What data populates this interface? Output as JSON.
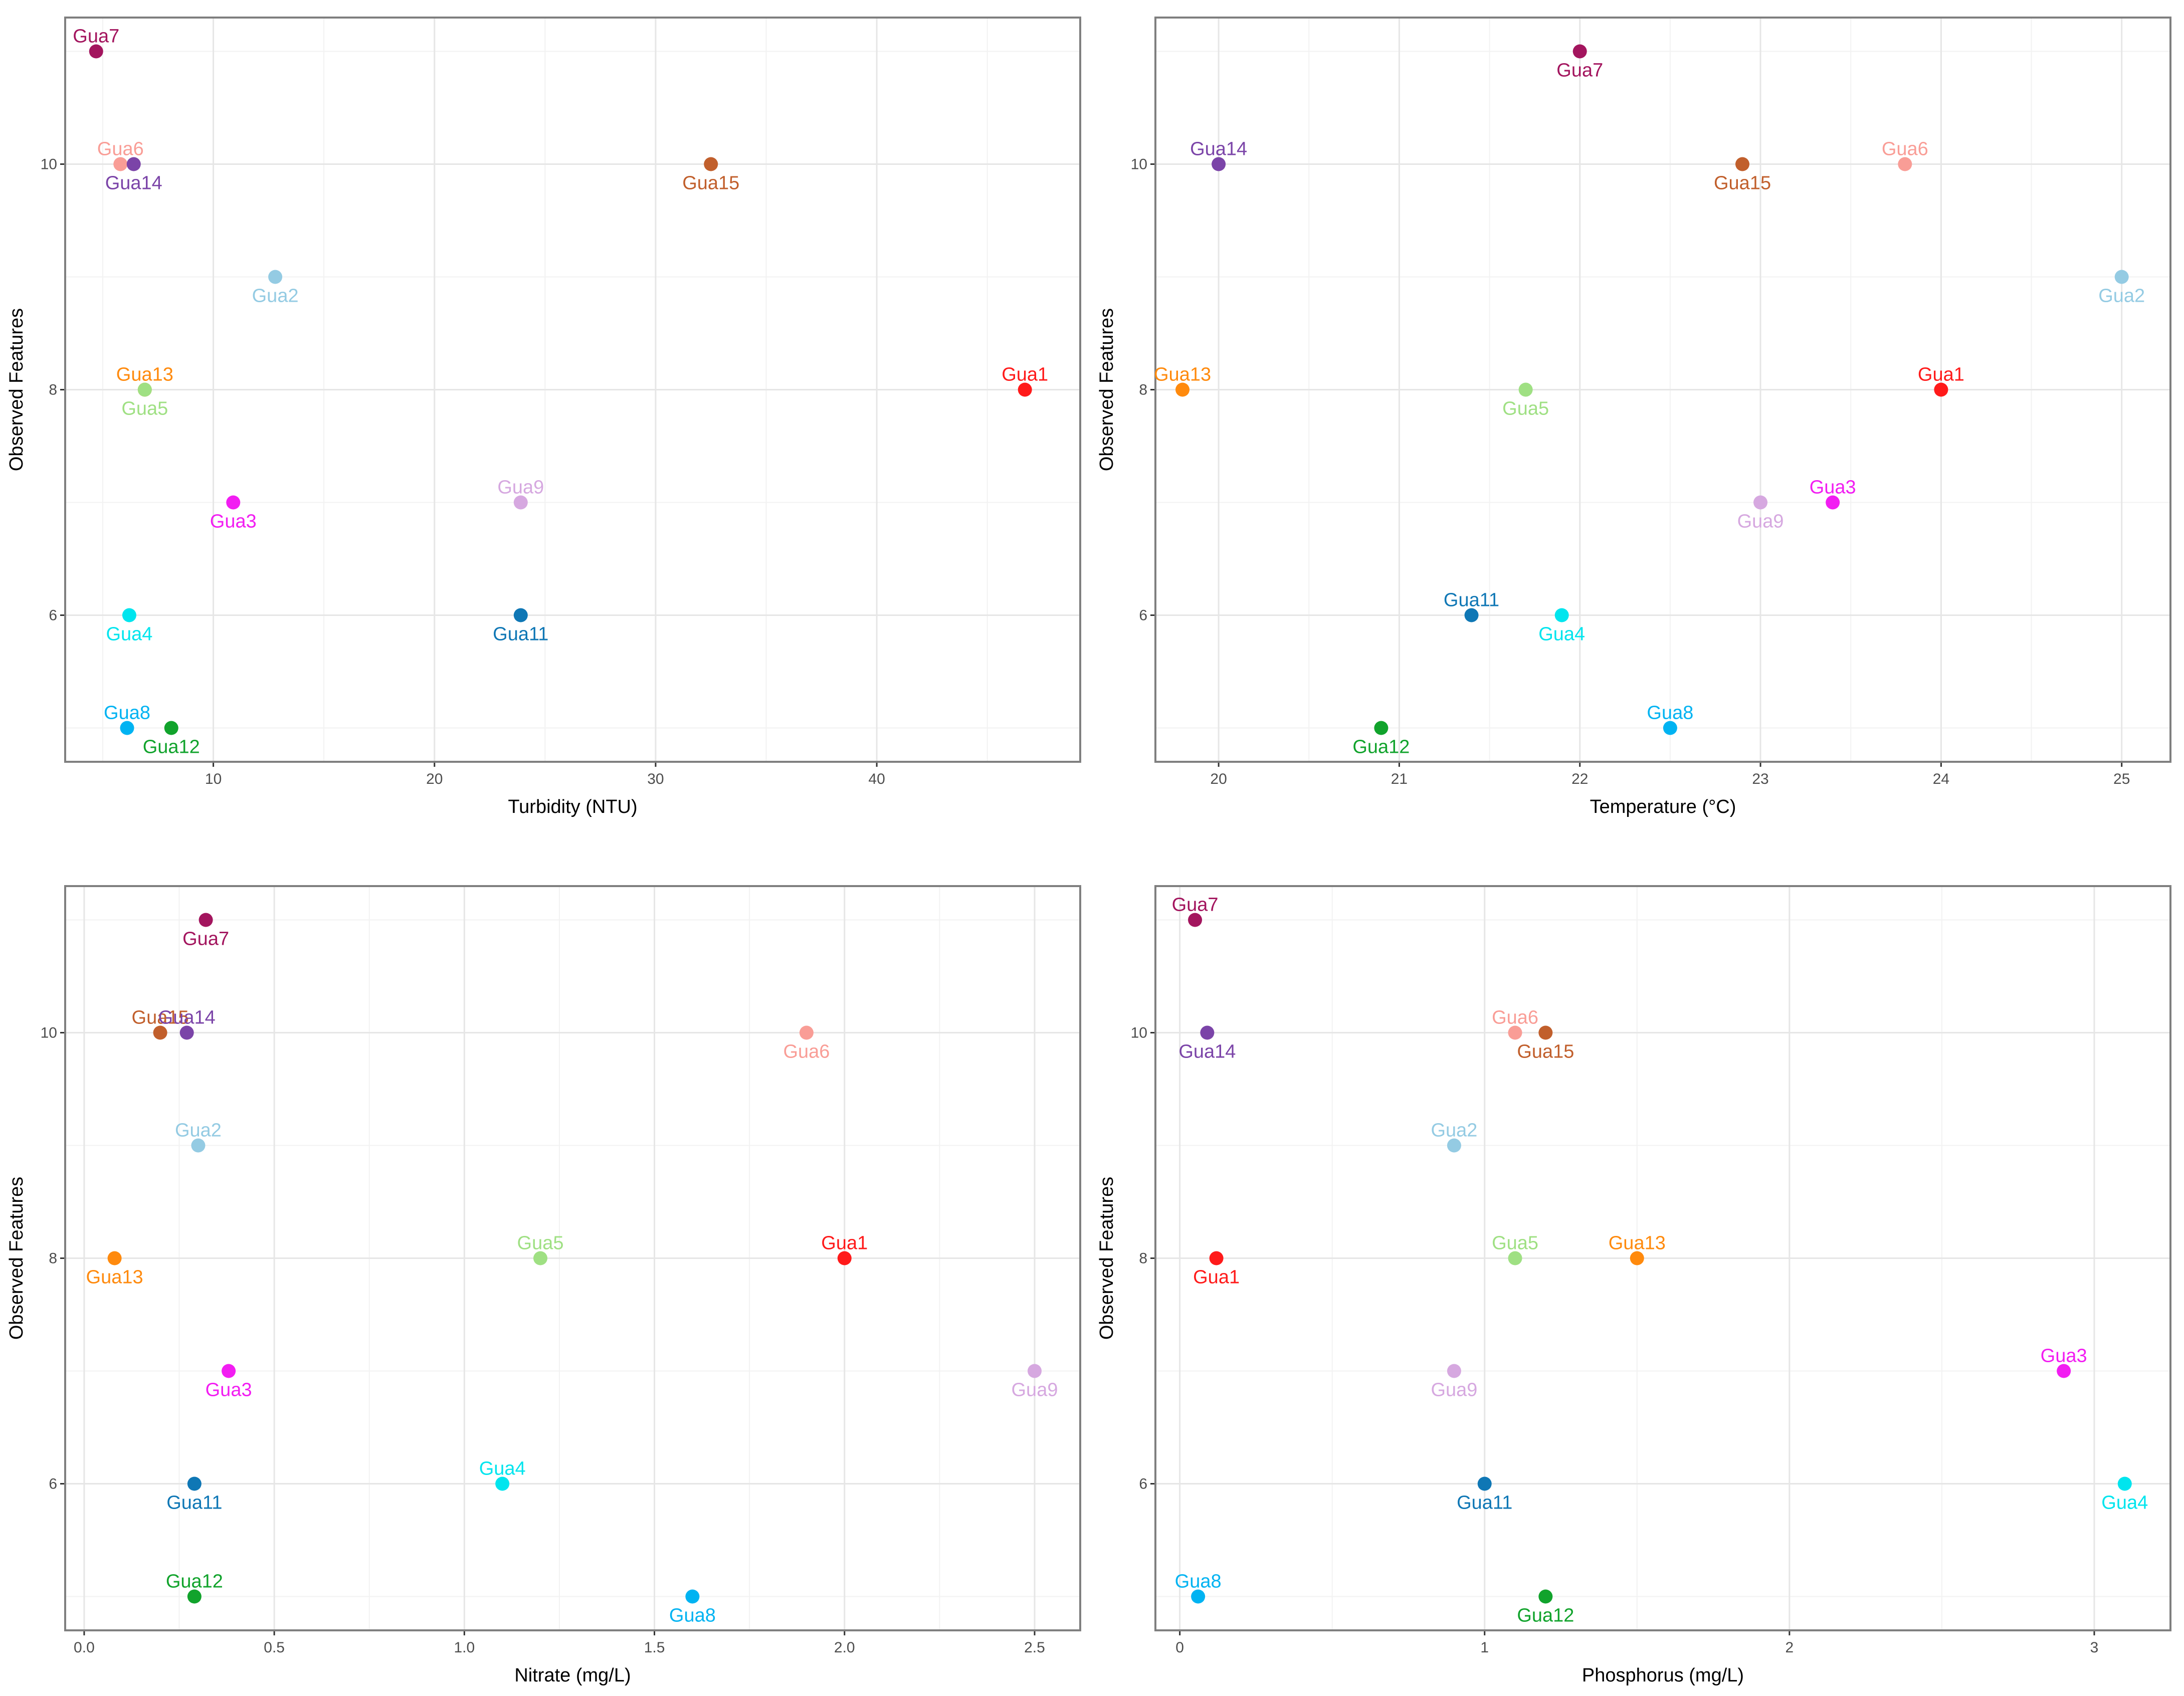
{
  "colors": {
    "Gua1": "#ff1a1a",
    "Gua2": "#94cbe3",
    "Gua3": "#f21df2",
    "Gua4": "#00e5ee",
    "Gua5": "#9fe083",
    "Gua6": "#f99d96",
    "Gua7": "#a3155e",
    "Gua8": "#00b3f2",
    "Gua9": "#d6a8e0",
    "Gua11": "#0f77b5",
    "Gua12": "#11a32c",
    "Gua13": "#ff8a0d",
    "Gua14": "#7b44a8",
    "Gua15": "#c15f2c"
  },
  "chart_data": [
    {
      "type": "scatter",
      "xlabel": "Turbidity (NTU)",
      "ylabel": "Observed Features",
      "xlim": [
        3.3,
        49.2
      ],
      "ylim": [
        4.7,
        11.3
      ],
      "xticks": [
        10,
        20,
        30,
        40
      ],
      "xtick_labels": [
        "10",
        "20",
        "30",
        "40"
      ],
      "yticks": [
        6,
        8,
        10
      ],
      "ytick_labels": [
        "6",
        "8",
        "10"
      ],
      "points": [
        {
          "id": "Gua7",
          "x": 4.7,
          "y": 11,
          "label": "Gua7",
          "pos": "above"
        },
        {
          "id": "Gua6",
          "x": 5.8,
          "y": 10,
          "label": "Gua6",
          "pos": "above"
        },
        {
          "id": "Gua14",
          "x": 6.4,
          "y": 10,
          "label": "Gua14",
          "pos": "below"
        },
        {
          "id": "Gua15",
          "x": 32.5,
          "y": 10,
          "label": "Gua15",
          "pos": "below"
        },
        {
          "id": "Gua2",
          "x": 12.8,
          "y": 9,
          "label": "Gua2",
          "pos": "below"
        },
        {
          "id": "Gua13",
          "x": 6.9,
          "y": 8,
          "label": "Gua13",
          "pos": "above"
        },
        {
          "id": "Gua5",
          "x": 6.9,
          "y": 8,
          "label": "Gua5",
          "pos": "below"
        },
        {
          "id": "Gua1",
          "x": 46.7,
          "y": 8,
          "label": "Gua1",
          "pos": "above"
        },
        {
          "id": "Gua9",
          "x": 23.9,
          "y": 7,
          "label": "Gua9",
          "pos": "above"
        },
        {
          "id": "Gua3",
          "x": 10.9,
          "y": 7,
          "label": "Gua3",
          "pos": "below"
        },
        {
          "id": "Gua4",
          "x": 6.2,
          "y": 6,
          "label": "Gua4",
          "pos": "below"
        },
        {
          "id": "Gua11",
          "x": 23.9,
          "y": 6,
          "label": "Gua11",
          "pos": "below"
        },
        {
          "id": "Gua8",
          "x": 6.1,
          "y": 5,
          "label": "Gua8",
          "pos": "above"
        },
        {
          "id": "Gua12",
          "x": 8.1,
          "y": 5,
          "label": "Gua12",
          "pos": "below"
        }
      ]
    },
    {
      "type": "scatter",
      "xlabel": "Temperature (°C)",
      "ylabel": "Observed Features",
      "xlim": [
        19.65,
        25.27
      ],
      "ylim": [
        4.7,
        11.3
      ],
      "xticks": [
        20,
        21,
        22,
        23,
        24,
        25
      ],
      "xtick_labels": [
        "20",
        "21",
        "22",
        "23",
        "24",
        "25"
      ],
      "yticks": [
        6,
        8,
        10
      ],
      "ytick_labels": [
        "6",
        "8",
        "10"
      ],
      "points": [
        {
          "id": "Gua7",
          "x": 22.0,
          "y": 11,
          "label": "Gua7",
          "pos": "below"
        },
        {
          "id": "Gua14",
          "x": 20.0,
          "y": 10,
          "label": "Gua14",
          "pos": "above"
        },
        {
          "id": "Gua15",
          "x": 22.9,
          "y": 10,
          "label": "Gua15",
          "pos": "below"
        },
        {
          "id": "Gua6",
          "x": 23.8,
          "y": 10,
          "label": "Gua6",
          "pos": "above"
        },
        {
          "id": "Gua2",
          "x": 25.0,
          "y": 9,
          "label": "Gua2",
          "pos": "below"
        },
        {
          "id": "Gua13",
          "x": 19.8,
          "y": 8,
          "label": "Gua13",
          "pos": "above"
        },
        {
          "id": "Gua5",
          "x": 21.7,
          "y": 8,
          "label": "Gua5",
          "pos": "below"
        },
        {
          "id": "Gua1",
          "x": 24.0,
          "y": 8,
          "label": "Gua1",
          "pos": "above"
        },
        {
          "id": "Gua9",
          "x": 23.0,
          "y": 7,
          "label": "Gua9",
          "pos": "below"
        },
        {
          "id": "Gua3",
          "x": 23.4,
          "y": 7,
          "label": "Gua3",
          "pos": "above"
        },
        {
          "id": "Gua11",
          "x": 21.4,
          "y": 6,
          "label": "Gua11",
          "pos": "above"
        },
        {
          "id": "Gua4",
          "x": 21.9,
          "y": 6,
          "label": "Gua4",
          "pos": "below"
        },
        {
          "id": "Gua12",
          "x": 20.9,
          "y": 5,
          "label": "Gua12",
          "pos": "below"
        },
        {
          "id": "Gua8",
          "x": 22.5,
          "y": 5,
          "label": "Gua8",
          "pos": "above"
        }
      ]
    },
    {
      "type": "scatter",
      "xlabel": "Nitrate (mg/L)",
      "ylabel": "Observed Features",
      "xlim": [
        -0.05,
        2.62
      ],
      "ylim": [
        4.7,
        11.3
      ],
      "xticks": [
        0,
        0.5,
        1.0,
        1.5,
        2.0,
        2.5
      ],
      "xtick_labels": [
        "0.0",
        "0.5",
        "1.0",
        "1.5",
        "2.0",
        "2.5"
      ],
      "yticks": [
        6,
        8,
        10
      ],
      "ytick_labels": [
        "6",
        "8",
        "10"
      ],
      "points": [
        {
          "id": "Gua7",
          "x": 0.32,
          "y": 11,
          "label": "Gua7",
          "pos": "below"
        },
        {
          "id": "Gua15",
          "x": 0.2,
          "y": 10,
          "label": "Gua15",
          "pos": "above"
        },
        {
          "id": "Gua14",
          "x": 0.27,
          "y": 10,
          "label": "Gua14",
          "pos": "above"
        },
        {
          "id": "Gua6",
          "x": 1.9,
          "y": 10,
          "label": "Gua6",
          "pos": "below"
        },
        {
          "id": "Gua2",
          "x": 0.3,
          "y": 9,
          "label": "Gua2",
          "pos": "above"
        },
        {
          "id": "Gua13",
          "x": 0.08,
          "y": 8,
          "label": "Gua13",
          "pos": "below"
        },
        {
          "id": "Gua5",
          "x": 1.2,
          "y": 8,
          "label": "Gua5",
          "pos": "above"
        },
        {
          "id": "Gua1",
          "x": 2.0,
          "y": 8,
          "label": "Gua1",
          "pos": "above"
        },
        {
          "id": "Gua3",
          "x": 0.38,
          "y": 7,
          "label": "Gua3",
          "pos": "below"
        },
        {
          "id": "Gua9",
          "x": 2.5,
          "y": 7,
          "label": "Gua9",
          "pos": "below"
        },
        {
          "id": "Gua11",
          "x": 0.29,
          "y": 6,
          "label": "Gua11",
          "pos": "below"
        },
        {
          "id": "Gua4",
          "x": 1.1,
          "y": 6,
          "label": "Gua4",
          "pos": "above"
        },
        {
          "id": "Gua12",
          "x": 0.29,
          "y": 5,
          "label": "Gua12",
          "pos": "above"
        },
        {
          "id": "Gua8",
          "x": 1.6,
          "y": 5,
          "label": "Gua8",
          "pos": "below"
        }
      ]
    },
    {
      "type": "scatter",
      "xlabel": "Phosphorus (mg/L)",
      "ylabel": "Observed Features",
      "xlim": [
        -0.08,
        3.25
      ],
      "ylim": [
        4.7,
        11.3
      ],
      "xticks": [
        0,
        1,
        2,
        3
      ],
      "xtick_labels": [
        "0",
        "1",
        "2",
        "3"
      ],
      "yticks": [
        6,
        8,
        10
      ],
      "ytick_labels": [
        "6",
        "8",
        "10"
      ],
      "points": [
        {
          "id": "Gua7",
          "x": 0.05,
          "y": 11,
          "label": "Gua7",
          "pos": "above"
        },
        {
          "id": "Gua14",
          "x": 0.09,
          "y": 10,
          "label": "Gua14",
          "pos": "below"
        },
        {
          "id": "Gua6",
          "x": 1.1,
          "y": 10,
          "label": "Gua6",
          "pos": "above"
        },
        {
          "id": "Gua15",
          "x": 1.2,
          "y": 10,
          "label": "Gua15",
          "pos": "below"
        },
        {
          "id": "Gua2",
          "x": 0.9,
          "y": 9,
          "label": "Gua2",
          "pos": "above"
        },
        {
          "id": "Gua1",
          "x": 0.12,
          "y": 8,
          "label": "Gua1",
          "pos": "below"
        },
        {
          "id": "Gua5",
          "x": 1.1,
          "y": 8,
          "label": "Gua5",
          "pos": "above"
        },
        {
          "id": "Gua13",
          "x": 1.5,
          "y": 8,
          "label": "Gua13",
          "pos": "above"
        },
        {
          "id": "Gua9",
          "x": 0.9,
          "y": 7,
          "label": "Gua9",
          "pos": "below"
        },
        {
          "id": "Gua3",
          "x": 2.9,
          "y": 7,
          "label": "Gua3",
          "pos": "above"
        },
        {
          "id": "Gua11",
          "x": 1.0,
          "y": 6,
          "label": "Gua11",
          "pos": "below"
        },
        {
          "id": "Gua4",
          "x": 3.1,
          "y": 6,
          "label": "Gua4",
          "pos": "below"
        },
        {
          "id": "Gua8",
          "x": 0.06,
          "y": 5,
          "label": "Gua8",
          "pos": "above"
        },
        {
          "id": "Gua12",
          "x": 1.2,
          "y": 5,
          "label": "Gua12",
          "pos": "below"
        }
      ]
    }
  ]
}
